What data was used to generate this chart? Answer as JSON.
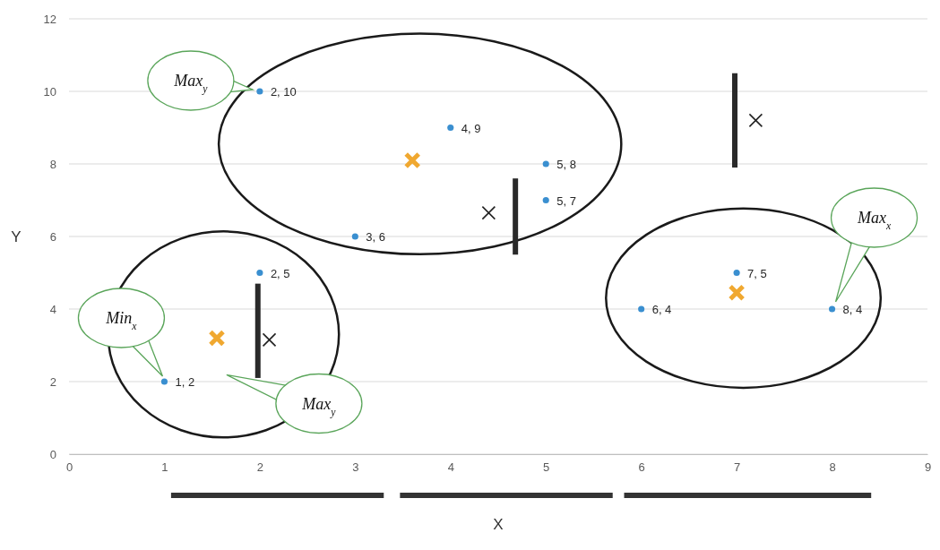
{
  "chart_data": {
    "type": "scatter",
    "xlabel": "X",
    "ylabel": "Y",
    "xlim": [
      0,
      9
    ],
    "xticks": [
      0,
      1,
      2,
      3,
      4,
      5,
      6,
      7,
      8,
      9
    ],
    "ylim": [
      0,
      12
    ],
    "yticks": [
      0,
      2,
      4,
      6,
      8,
      10,
      12
    ],
    "grid": "y",
    "series": [
      {
        "color": "#3a8fd0",
        "marker": "circle",
        "x": [
          1,
          2,
          2,
          3,
          4,
          5,
          5,
          6,
          7,
          8
        ],
        "values": [
          2,
          5,
          10,
          6,
          9,
          8,
          7,
          4,
          5,
          4
        ],
        "value_labels": [
          "1, 2",
          "2, 5",
          "2, 10",
          "3, 6",
          "4, 9",
          "5, 8",
          "5, 7",
          "6, 4",
          "7, 5",
          "8, 4"
        ]
      },
      {
        "color": "#f0a830",
        "marker": "cross",
        "x": [
          1.55,
          3.6,
          7
        ],
        "values": [
          3.2,
          8.1,
          4.45
        ]
      },
      {
        "color": "#222222",
        "marker": "cross",
        "x": [
          2.1,
          4.4,
          7.2
        ],
        "values": [
          3.15,
          6.65,
          9.2
        ]
      }
    ],
    "annotations": [
      "Max$_{y}$",
      "Min$_{x}$",
      "Max$_{y}$",
      "Max$_{x}$"
    ]
  }
}
